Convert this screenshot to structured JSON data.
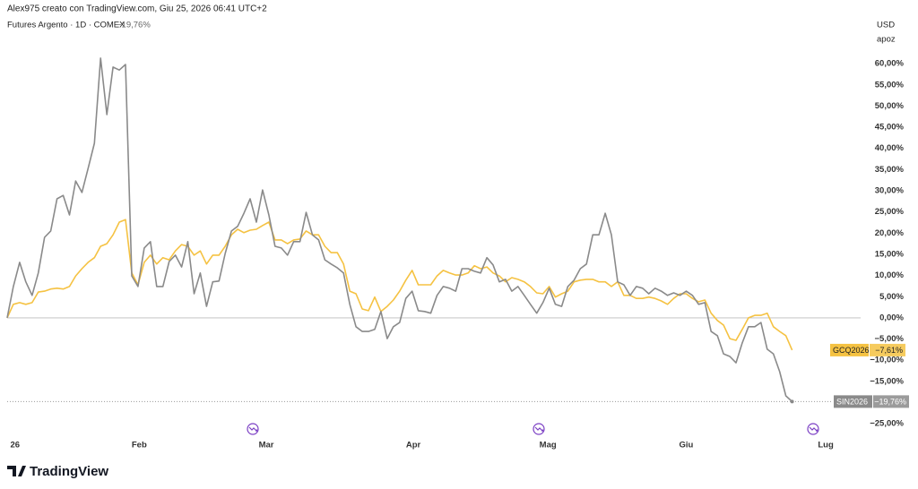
{
  "chart_data": {
    "type": "line",
    "header": "Alex975 creato con TradingView.com, Giu 25, 2026 06:41 UTC+2",
    "title": "Futures Argento · 1D · COMEX",
    "change": "−19,76%",
    "currency": "USD",
    "unit": "apoz",
    "brand": "TradingView",
    "xlim": [
      0,
      137
    ],
    "xticks": [
      {
        "value": 0.5,
        "label": "26"
      },
      {
        "value": 21.2,
        "label": "Feb"
      },
      {
        "value": 41.6,
        "label": "Mar"
      },
      {
        "value": 65.2,
        "label": "Apr"
      },
      {
        "value": 86.8,
        "label": "Mag"
      },
      {
        "value": 109,
        "label": "Giu"
      },
      {
        "value": 131.4,
        "label": "Lug"
      }
    ],
    "ylim": [
      -27.5,
      70.8
    ],
    "yticks": [
      {
        "value": 60,
        "label": "60,00%"
      },
      {
        "value": 55,
        "label": "55,00%"
      },
      {
        "value": 50,
        "label": "50,00%"
      },
      {
        "value": 45,
        "label": "45,00%"
      },
      {
        "value": 40,
        "label": "40,00%"
      },
      {
        "value": 35,
        "label": "35,00%"
      },
      {
        "value": 30,
        "label": "30,00%"
      },
      {
        "value": 25,
        "label": "25,00%"
      },
      {
        "value": 20,
        "label": "20,00%"
      },
      {
        "value": 15,
        "label": "15,00%"
      },
      {
        "value": 10,
        "label": "10,00%"
      },
      {
        "value": 5,
        "label": "5,00%"
      },
      {
        "value": 0,
        "label": "0,00%"
      },
      {
        "value": -5,
        "label": "−5,00%"
      },
      {
        "value": -10,
        "label": "−10,00%"
      },
      {
        "value": -15,
        "label": "−15,00%"
      },
      {
        "value": -25,
        "label": "−25,00%"
      }
    ],
    "grid": false,
    "series": [
      {
        "name": "GCQ2026",
        "color": "#f5c242",
        "last_value_label": "−7,61%",
        "values": [
          0,
          3.2,
          3.6,
          3.2,
          3.6,
          6.1,
          6.3,
          6.8,
          7.0,
          6.8,
          7.4,
          9.9,
          11.6,
          13.1,
          14.2,
          16.9,
          17.5,
          19.6,
          22.6,
          23.2,
          10.6,
          7.8,
          13.1,
          14.8,
          12.7,
          14.2,
          13.7,
          15.8,
          17.3,
          16.9,
          14.8,
          15.8,
          12.7,
          14.8,
          14.8,
          16.9,
          19.6,
          20.9,
          20.1,
          20.7,
          20.9,
          21.8,
          22.6,
          18.4,
          18.4,
          17.5,
          18.4,
          18.6,
          20.5,
          19.6,
          19.6,
          16.9,
          15.4,
          15.4,
          12.7,
          6.3,
          5.7,
          2.1,
          1.7,
          4.9,
          1.5,
          2.7,
          4.2,
          6.3,
          8.9,
          11.2,
          7.8,
          7.8,
          7.8,
          9.9,
          11.2,
          10.6,
          10.1,
          10.1,
          10.6,
          12.3,
          11.6,
          12.0,
          10.6,
          9.9,
          8.5,
          9.5,
          9.1,
          8.5,
          7.4,
          5.9,
          5.7,
          7.4,
          4.9,
          5.7,
          6.3,
          8.5,
          8.9,
          9.1,
          9.1,
          8.5,
          8.5,
          7.4,
          8.5,
          5.3,
          5.3,
          4.6,
          4.6,
          4.9,
          4.6,
          4.0,
          3.2,
          4.6,
          5.7,
          5.7,
          4.6,
          3.8,
          4.2,
          1.1,
          -0.6,
          -1.7,
          -4.9,
          -5.3,
          -2.7,
          0,
          0.6,
          0.6,
          1.1,
          -2.1,
          -3.2,
          -4.2,
          -7.61
        ]
      },
      {
        "name": "SIN2026",
        "color": "#8a8a8a",
        "last_value_label": "−19,76%",
        "values": [
          0,
          7.4,
          13.1,
          8.5,
          5.3,
          10.6,
          19.0,
          20.5,
          28.1,
          28.9,
          24.3,
          32.3,
          29.6,
          35.3,
          41.2,
          61.3,
          48.0,
          59.2,
          58.5,
          59.8,
          9.9,
          7.4,
          16.5,
          18.0,
          7.4,
          7.4,
          13.3,
          14.8,
          12.0,
          18.0,
          5.7,
          10.6,
          2.7,
          8.5,
          8.7,
          15.2,
          20.5,
          21.6,
          24.7,
          28.1,
          22.6,
          30.2,
          24.3,
          16.9,
          16.5,
          14.8,
          18.0,
          18.0,
          24.9,
          19.6,
          18.4,
          13.7,
          12.7,
          11.8,
          10.6,
          3.2,
          -2.1,
          -3.2,
          -3.2,
          -2.7,
          1.5,
          -4.9,
          -2.1,
          -1.1,
          4.6,
          6.3,
          1.7,
          1.5,
          1.1,
          5.3,
          7.4,
          7.0,
          6.3,
          11.6,
          11.6,
          11.0,
          10.6,
          14.2,
          12.5,
          8.5,
          9.1,
          6.3,
          7.4,
          5.3,
          3.2,
          1.1,
          3.6,
          7.0,
          3.2,
          2.7,
          7.4,
          8.9,
          11.6,
          12.7,
          19.6,
          19.6,
          24.7,
          19.6,
          8.5,
          7.8,
          5.3,
          7.4,
          7.0,
          5.7,
          7.0,
          6.3,
          5.3,
          5.9,
          5.3,
          6.3,
          5.3,
          3.2,
          3.6,
          -3.2,
          -4.2,
          -8.5,
          -9.1,
          -10.6,
          -5.9,
          -2.1,
          -2.1,
          -1.1,
          -7.4,
          -8.5,
          -12.7,
          -18.4,
          -19.76
        ]
      }
    ]
  }
}
